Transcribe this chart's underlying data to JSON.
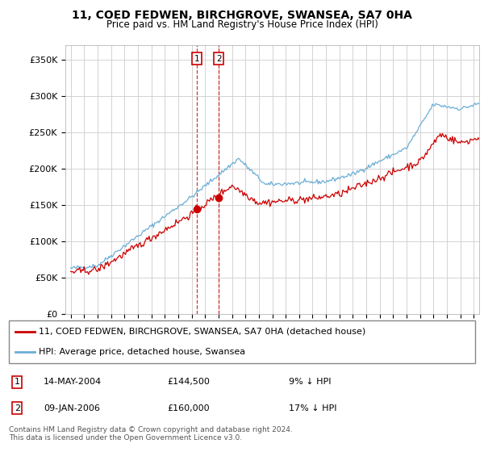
{
  "title": "11, COED FEDWEN, BIRCHGROVE, SWANSEA, SA7 0HA",
  "subtitle": "Price paid vs. HM Land Registry's House Price Index (HPI)",
  "legend_line1": "11, COED FEDWEN, BIRCHGROVE, SWANSEA, SA7 0HA (detached house)",
  "legend_line2": "HPI: Average price, detached house, Swansea",
  "footer": "Contains HM Land Registry data © Crown copyright and database right 2024.\nThis data is licensed under the Open Government Licence v3.0.",
  "transaction1_date": "14-MAY-2004",
  "transaction1_price": "£144,500",
  "transaction1_hpi": "9% ↓ HPI",
  "transaction2_date": "09-JAN-2006",
  "transaction2_price": "£160,000",
  "transaction2_hpi": "17% ↓ HPI",
  "transaction1_x": 2004.37,
  "transaction1_y": 144500,
  "transaction2_x": 2006.03,
  "transaction2_y": 160000,
  "hpi_color": "#6baed6",
  "price_color": "#cc0000",
  "ylim": [
    0,
    370000
  ],
  "yticks": [
    0,
    50000,
    100000,
    150000,
    200000,
    250000,
    300000,
    350000
  ],
  "xlim_left": 1994.6,
  "xlim_right": 2025.4,
  "background_color": "#ffffff",
  "grid_color": "#cccccc",
  "title_fontsize": 10,
  "subtitle_fontsize": 8.5,
  "tick_fontsize": 7,
  "ylabel_fontsize": 8
}
